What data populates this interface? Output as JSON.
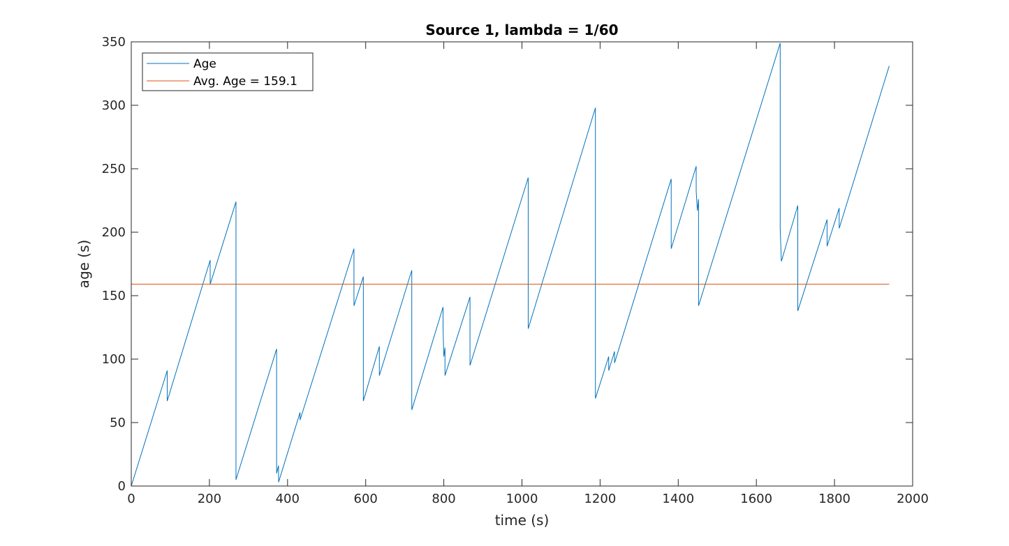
{
  "chart_data": {
    "type": "line",
    "title": "Source 1, lambda = 1/60",
    "xlabel": "time (s)",
    "ylabel": "age (s)",
    "xlim": [
      0,
      2000
    ],
    "ylim": [
      0,
      350
    ],
    "xticks": [
      0,
      200,
      400,
      600,
      800,
      1000,
      1200,
      1400,
      1600,
      1800,
      2000
    ],
    "yticks": [
      0,
      50,
      100,
      150,
      200,
      250,
      300,
      350
    ],
    "grid": false,
    "legend_position": "top-left",
    "series": [
      {
        "name": "Age",
        "color": "#0072BD",
        "x": [
          0,
          92,
          92,
          202,
          202,
          268,
          268,
          372,
          372,
          377,
          377,
          382,
          382,
          432,
          432,
          570,
          570,
          594,
          594,
          635,
          635,
          718,
          718,
          798,
          798,
          800,
          800,
          803,
          803,
          806,
          806,
          867,
          867,
          1016,
          1016,
          1188,
          1188,
          1222,
          1222,
          1237,
          1237,
          1382,
          1382,
          1446,
          1446,
          1449,
          1449,
          1452,
          1452,
          1454,
          1454,
          1661,
          1661,
          1664,
          1664,
          1706,
          1706,
          1781,
          1781,
          1812,
          1812,
          1940
        ],
        "y": [
          0,
          91,
          67,
          178,
          159,
          224,
          5,
          108,
          10,
          16,
          3,
          8,
          8,
          58,
          52,
          187,
          142,
          165,
          67,
          110,
          87,
          170,
          60,
          141,
          125,
          102,
          102,
          109,
          87,
          90,
          90,
          149,
          95,
          243,
          124,
          298,
          69,
          102,
          91,
          106,
          97,
          242,
          187,
          252,
          232,
          217,
          217,
          226,
          142,
          144,
          144,
          349,
          203,
          177,
          177,
          221,
          138,
          210,
          189,
          219,
          203,
          331
        ]
      },
      {
        "name": "Avg. Age = 159.1",
        "color": "#D95319",
        "x": [
          0,
          1940
        ],
        "y": [
          159.1,
          159.1
        ]
      }
    ]
  }
}
